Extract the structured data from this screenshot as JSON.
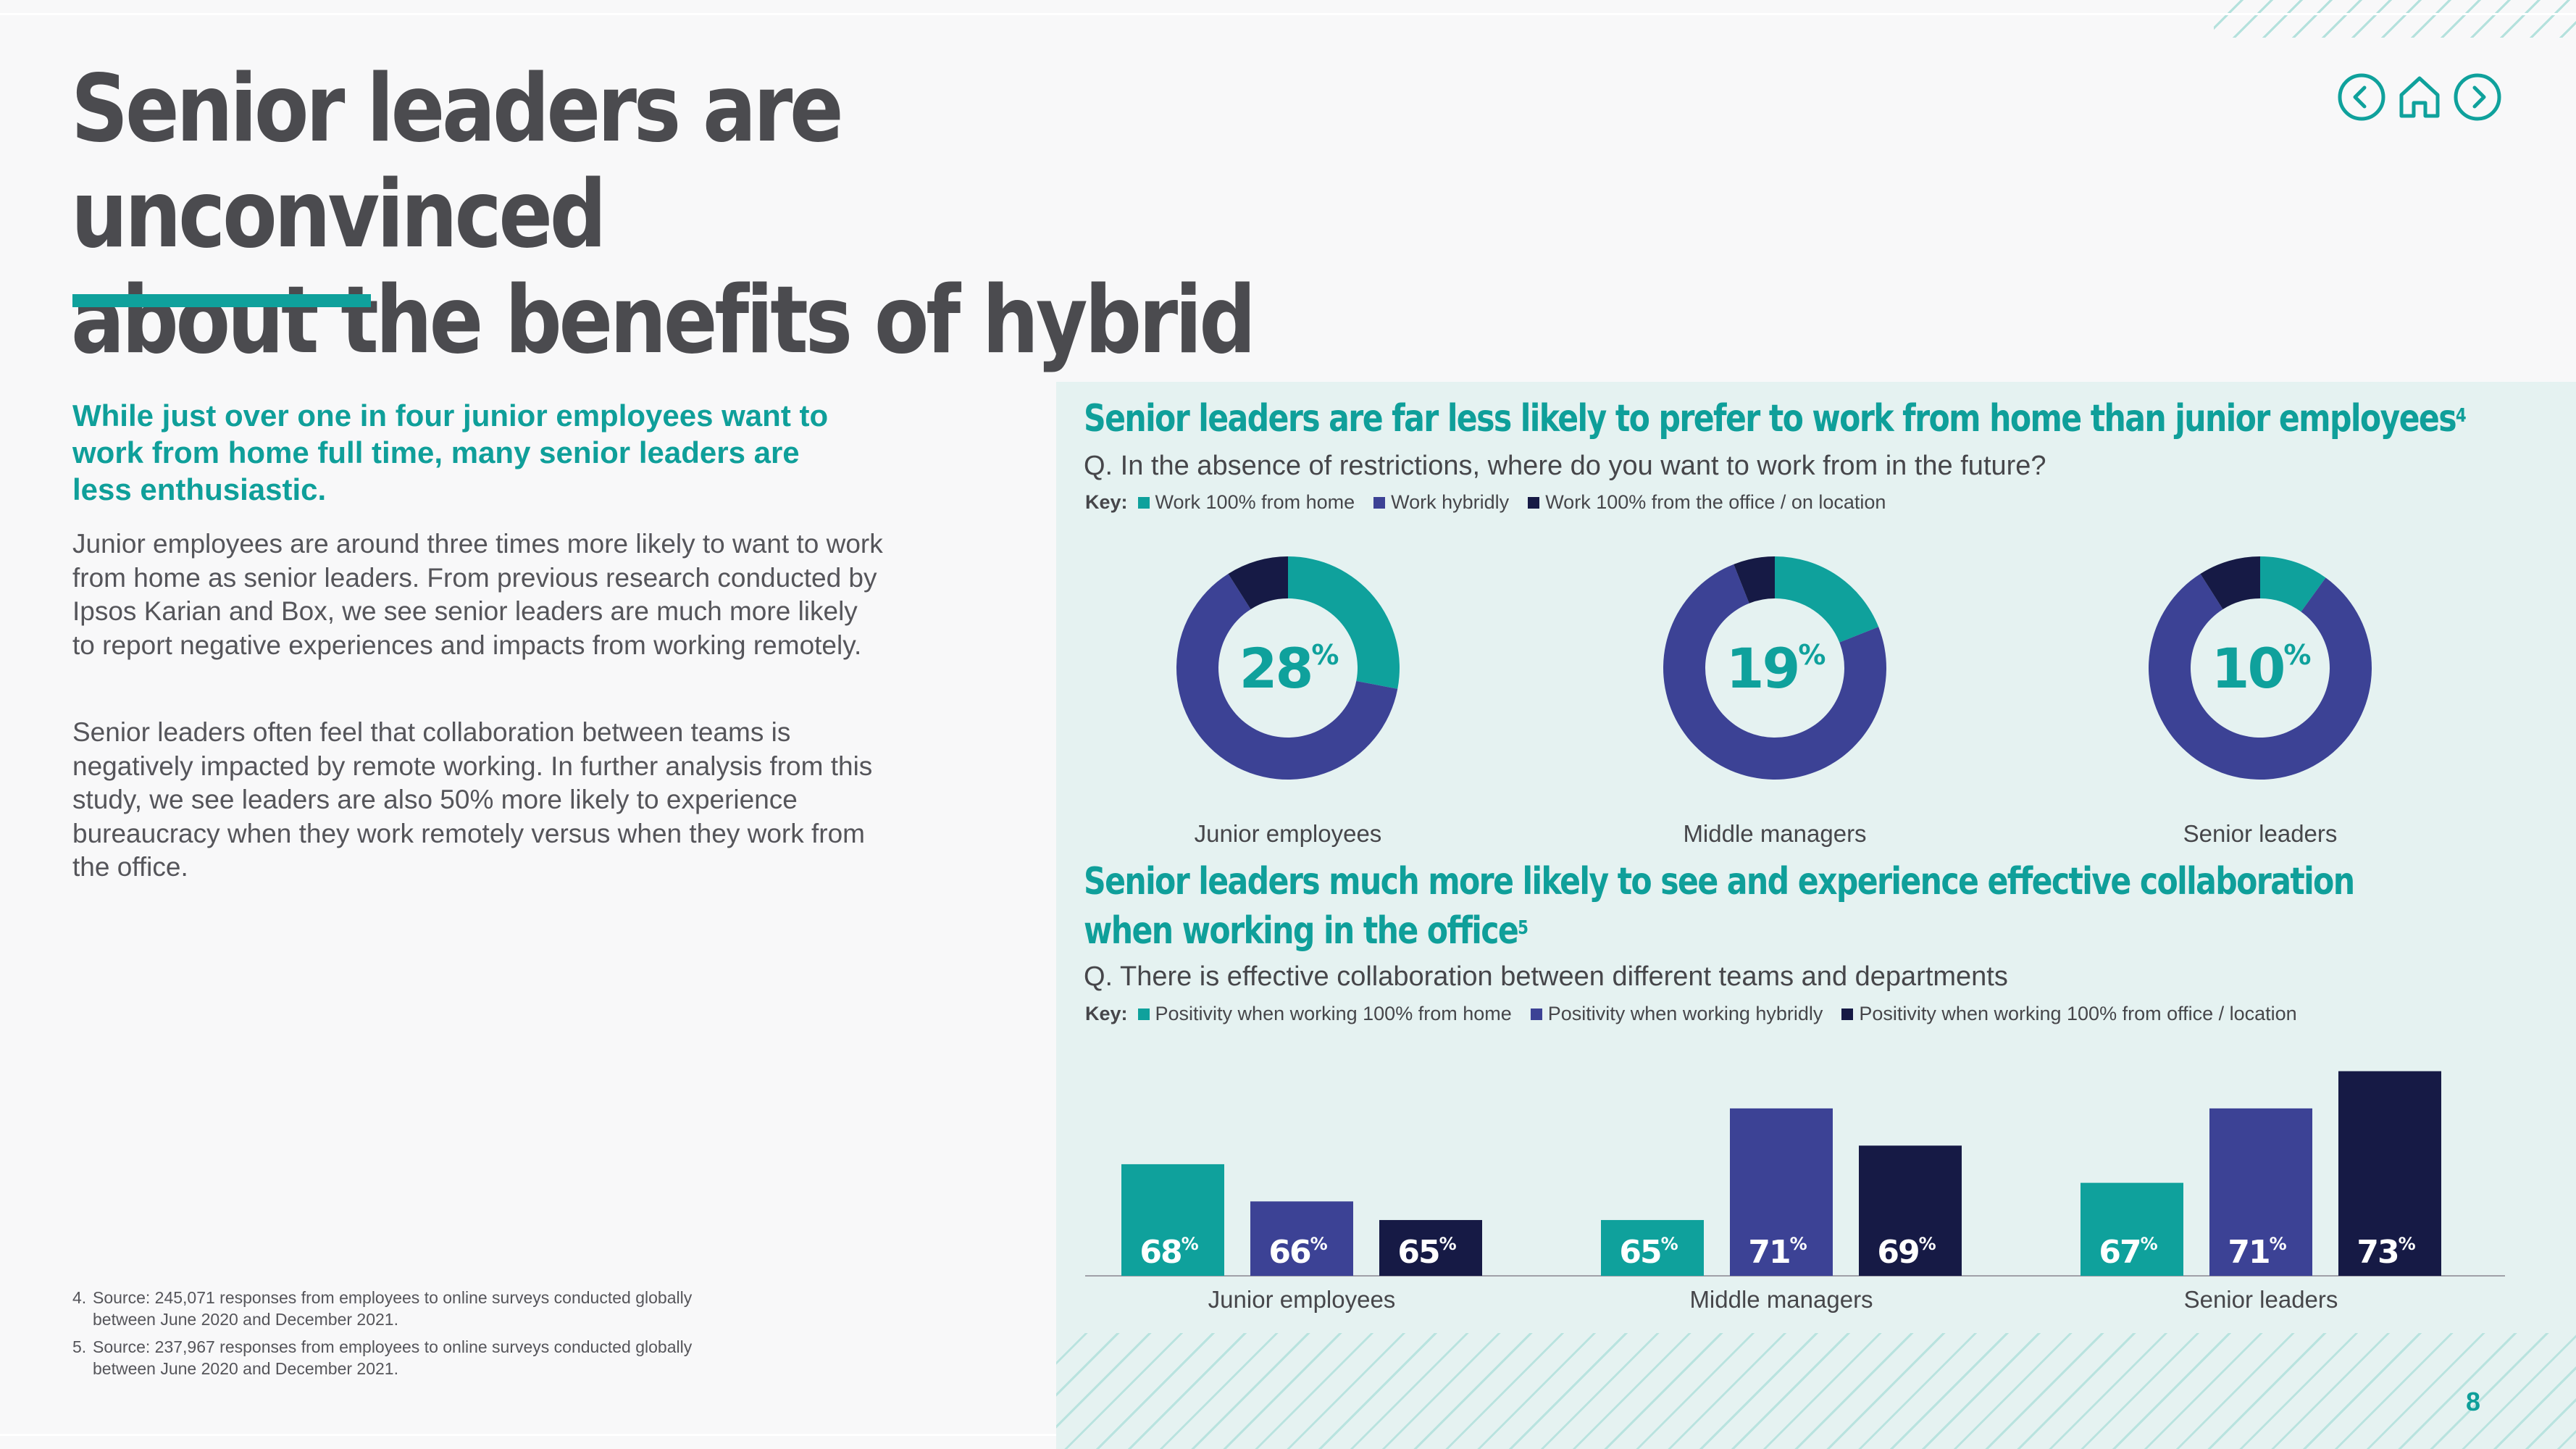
{
  "title": {
    "line1": "Senior leaders are unconvinced",
    "line2": "about the benefits of hybrid"
  },
  "colors": {
    "teal": "#0fa19c",
    "purple": "#3c4295",
    "navy": "#161a45"
  },
  "nav": {
    "back_icon": "chevron-left-icon",
    "home_icon": "home-icon",
    "forward_icon": "chevron-right-icon"
  },
  "left": {
    "lead": "While just over one in four junior employees want to work from home full time, many senior leaders are less enthusiastic.",
    "paragraph1": "Junior employees are around three times more likely to want to work from home as senior leaders. From previous research conducted by Ipsos Karian and Box, we see senior leaders are much more likely to report negative experiences and impacts from working remotely.",
    "paragraph2": "Senior leaders often feel that collaboration between teams is negatively impacted by remote working. In further analysis from this study, we see leaders are also 50% more likely to experience bureaucracy when they work remotely versus when they work from the office."
  },
  "footnotes": [
    {
      "num": "4.",
      "text": "Source: 245,071 responses from employees to online surveys conducted globally between June 2020 and December 2021."
    },
    {
      "num": "5.",
      "text": "Source: 237,967 responses from employees to online surveys conducted globally between June 2020 and December 2021."
    }
  ],
  "section1": {
    "title": "Senior leaders are far less likely to prefer to work from home than junior employees",
    "footnote_ref": "4",
    "question": "Q. In the absence of restrictions, where do you want to work from in the future?",
    "key_label": "Key:",
    "key_items": [
      "Work 100% from home",
      "Work hybridly",
      "Work 100% from the office / on location"
    ]
  },
  "section2": {
    "title_line1": "Senior leaders much more likely to see and experience effective collaboration",
    "title_line2": "when working in the office",
    "footnote_ref": "5",
    "question": "Q. There is effective collaboration between different teams and departments",
    "key_label": "Key:",
    "key_items": [
      "Positivity when working 100% from home",
      "Positivity when working hybridly",
      "Positivity when working 100% from office / location"
    ]
  },
  "chart_data": [
    {
      "type": "pie",
      "variant": "donut",
      "title": "Senior leaders are far less likely to prefer to work from home than junior employees",
      "segments": [
        "Work 100% from home",
        "Work hybridly",
        "Work 100% from the office / on location"
      ],
      "categories": [
        "Junior employees",
        "Middle managers",
        "Senior leaders"
      ],
      "series": [
        {
          "name": "Junior employees",
          "values": [
            28,
            63,
            9
          ],
          "center_label": "28"
        },
        {
          "name": "Middle managers",
          "values": [
            19,
            75,
            6
          ],
          "center_label": "19"
        },
        {
          "name": "Senior leaders",
          "values": [
            10,
            81,
            9
          ],
          "center_label": "10"
        }
      ],
      "unit": "%"
    },
    {
      "type": "bar",
      "title": "Senior leaders much more likely to see and experience effective collaboration when working in the office",
      "categories": [
        "Junior employees",
        "Middle managers",
        "Senior leaders"
      ],
      "series": [
        {
          "name": "Positivity when working 100% from home",
          "values": [
            68,
            65,
            67
          ]
        },
        {
          "name": "Positivity when working hybridly",
          "values": [
            66,
            71,
            71
          ]
        },
        {
          "name": "Positivity when working 100% from office / location",
          "values": [
            65,
            69,
            73
          ]
        }
      ],
      "unit": "%",
      "ylim": [
        62,
        74.5
      ]
    }
  ],
  "page_number": "8"
}
